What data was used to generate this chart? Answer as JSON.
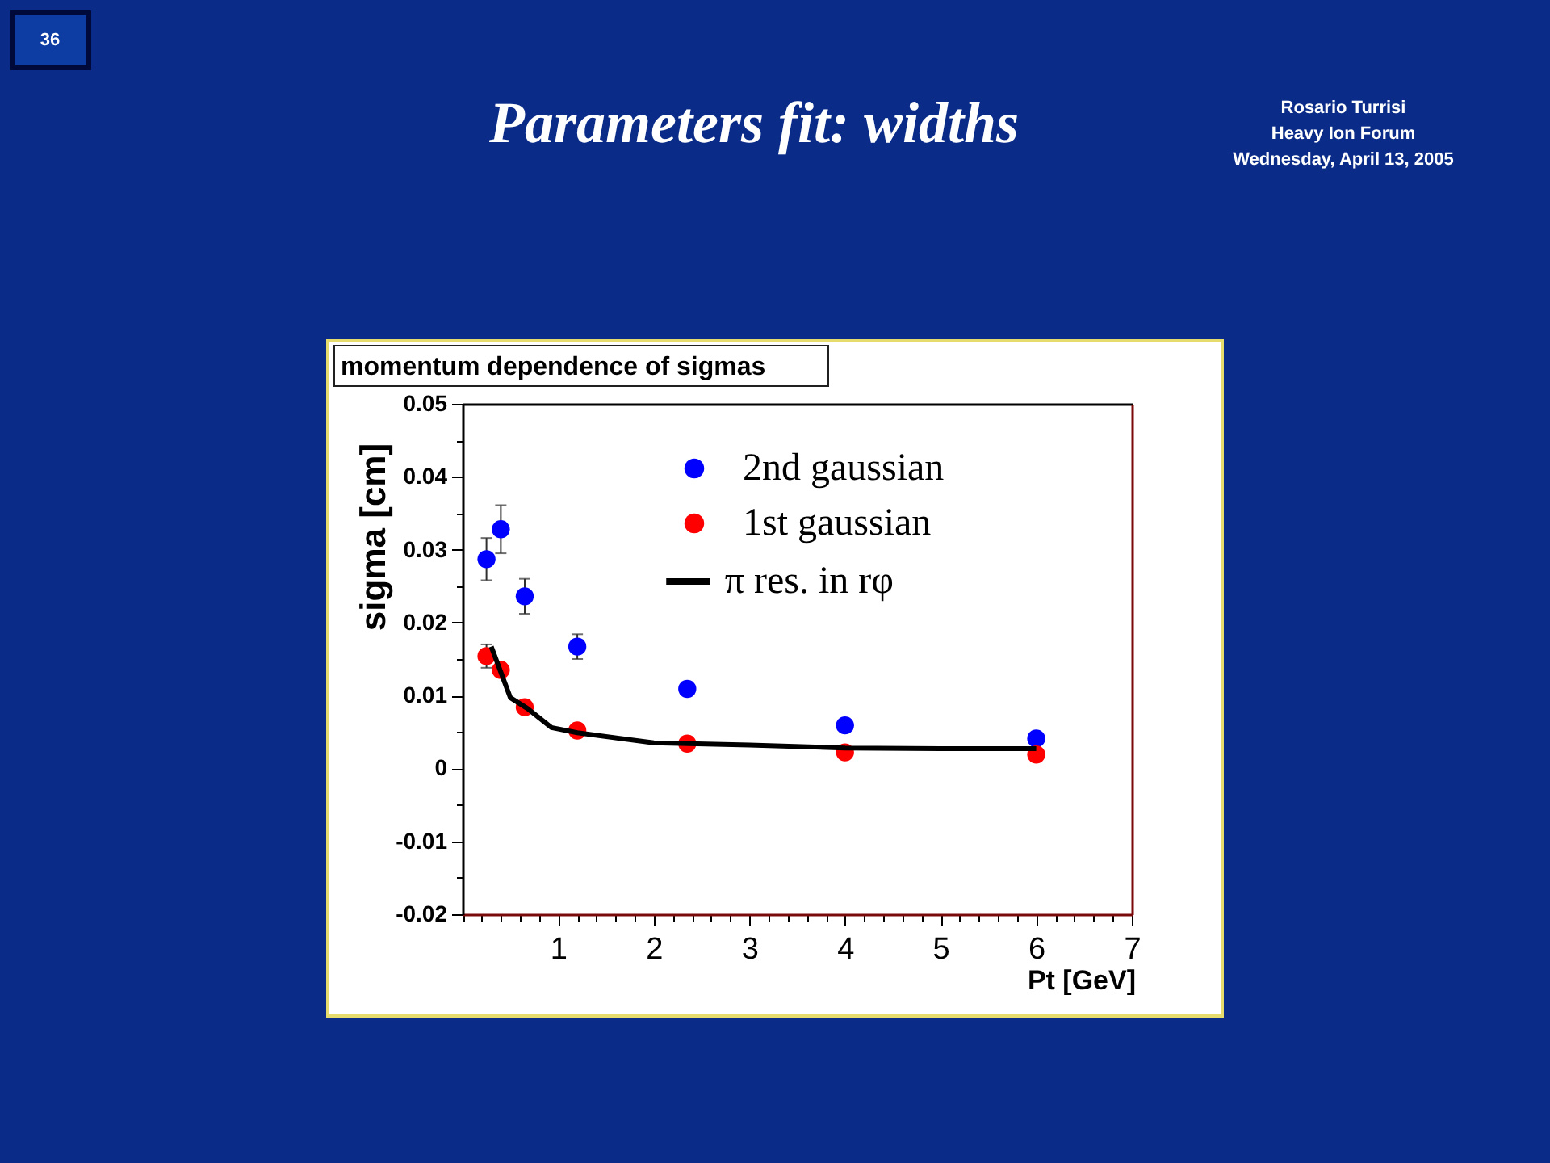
{
  "chart_data": {
    "type": "scatter",
    "title": "Parameters fit: widths",
    "subtitle": "momentum dependence of sigmas",
    "xlabel": "Pt [GeV]",
    "ylabel": "sigma [cm]",
    "x": [
      0.25,
      0.4,
      0.65,
      1.2,
      2.35,
      4,
      6
    ],
    "series": [
      {
        "name": "2nd gaussian",
        "color": "#0000ff",
        "values": [
          0.0287,
          0.0328,
          0.0236,
          0.0167,
          0.0109,
          0.0059,
          0.0041
        ],
        "errors": [
          0.0029,
          0.0033,
          0.0024,
          0.0017,
          null,
          null,
          null
        ]
      },
      {
        "name": "1st gaussian",
        "color": "#ff0000",
        "values": [
          0.0154,
          0.0135,
          0.0084,
          0.0052,
          0.0034,
          0.0022,
          0.0019
        ],
        "errors": [
          0.0016,
          null,
          null,
          null,
          null,
          null,
          null
        ]
      },
      {
        "name": "π res. in rφ",
        "type": "line",
        "color": "#000000",
        "marker": "none",
        "line_style": "solid",
        "x": [
          0.3,
          0.5,
          0.68,
          0.93,
          1.2,
          2,
          3,
          4,
          5,
          6
        ],
        "values": [
          0.0167,
          0.0097,
          0.0082,
          0.0056,
          0.0049,
          0.0035,
          0.0032,
          0.0028,
          0.0027,
          0.0027
        ]
      }
    ],
    "xlim": [
      0,
      7
    ],
    "xticks": [
      {
        "value": 0,
        "label": null
      },
      {
        "value": 0.2,
        "label": null
      },
      {
        "value": 0.4,
        "label": null
      },
      {
        "value": 0.6,
        "label": null
      },
      {
        "value": 0.8,
        "label": null
      },
      1,
      {
        "value": 1.2,
        "label": null
      },
      {
        "value": 1.4,
        "label": null
      },
      {
        "value": 1.6,
        "label": null
      },
      {
        "value": 1.8,
        "label": null
      },
      2,
      {
        "value": 2.2,
        "label": null
      },
      {
        "value": 2.4,
        "label": null
      },
      {
        "value": 2.6,
        "label": null
      },
      {
        "value": 2.8,
        "label": null
      },
      3,
      {
        "value": 3.2,
        "label": null
      },
      {
        "value": 3.4,
        "label": null
      },
      {
        "value": 3.6,
        "label": null
      },
      {
        "value": 3.8,
        "label": null
      },
      4,
      {
        "value": 4.2,
        "label": null
      },
      {
        "value": 4.4,
        "label": null
      },
      {
        "value": 4.6,
        "label": null
      },
      {
        "value": 4.8,
        "label": null
      },
      5,
      {
        "value": 5.2,
        "label": null
      },
      {
        "value": 5.4,
        "label": null
      },
      {
        "value": 5.6,
        "label": null
      },
      {
        "value": 5.8,
        "label": null
      },
      6,
      {
        "value": 6.2,
        "label": null
      },
      {
        "value": 6.4,
        "label": null
      },
      {
        "value": 6.6,
        "label": null
      },
      {
        "value": 6.8,
        "label": null
      },
      7
    ],
    "ylim": [
      -0.02,
      0.05
    ],
    "yticks": [
      -0.02,
      {
        "value": -0.015,
        "label": null
      },
      -0.01,
      {
        "value": -0.005,
        "label": null
      },
      0,
      {
        "value": 0.005,
        "label": null
      },
      0.01,
      {
        "value": 0.015,
        "label": null
      },
      0.02,
      {
        "value": 0.025,
        "label": null
      },
      0.03,
      {
        "value": 0.035,
        "label": null
      },
      0.04,
      {
        "value": 0.045,
        "label": null
      },
      0.05
    ],
    "legend": "top",
    "marker": "circle",
    "annotations": [
      "36",
      "Rosario Turrisi",
      "Heavy Ion Forum",
      "Wednesday, April 13, 2005"
    ]
  }
}
